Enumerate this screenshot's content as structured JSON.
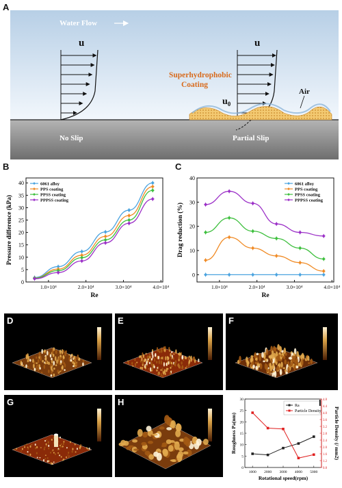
{
  "panels": {
    "A": {
      "letter": "A",
      "water_flow": "Water Flow",
      "u_left": "u",
      "u_right": "u",
      "u0": "u",
      "u0_sub": "0",
      "coating_line1": "Superhydrophobic",
      "coating_line2": "Coating",
      "air": "Air",
      "no_slip": "No Slip",
      "partial_slip": "Partial Slip",
      "colors": {
        "sky_top": "#b7cfe6",
        "sky_bottom": "#f2f7fc",
        "coating_text": "#d86b1d",
        "coating_fill": "#f3c971",
        "ground": "#8f8f8f"
      }
    },
    "D": {
      "letter": "D"
    },
    "E": {
      "letter": "E"
    },
    "F": {
      "letter": "F"
    },
    "G": {
      "letter": "G"
    },
    "H": {
      "letter": "H"
    }
  },
  "chart_data": [
    {
      "id": "B",
      "letter": "B",
      "type": "line",
      "xlabel": "Re",
      "ylabel": "Pressure difference (kPa)",
      "x": [
        6300,
        12600,
        18900,
        25200,
        31500,
        37800
      ],
      "xlim": [
        4000,
        40500
      ],
      "ylim": [
        0,
        42
      ],
      "xticks": [
        10000,
        20000,
        30000,
        40000
      ],
      "xticklabels": [
        "1.0×10⁴",
        "2.0×10⁴",
        "3.0×10⁴",
        "4.0×10⁴"
      ],
      "yticks": [
        0,
        5,
        10,
        15,
        20,
        25,
        30,
        35,
        40
      ],
      "legend_position": "top-left",
      "series": [
        {
          "name": "6061 alloy",
          "color": "#4aa3df",
          "marker": "diamond",
          "values": [
            1.8,
            6.2,
            12.3,
            20.2,
            29.0,
            40.0
          ]
        },
        {
          "name": "PPS coating",
          "color": "#f08a24",
          "marker": "diamond",
          "values": [
            1.6,
            5.2,
            10.8,
            18.4,
            26.8,
            38.5
          ]
        },
        {
          "name": "PPSS coating",
          "color": "#3dbf3d",
          "marker": "diamond",
          "values": [
            1.5,
            4.6,
            9.8,
            17.0,
            25.0,
            37.0
          ]
        },
        {
          "name": "PPPSS coating",
          "color": "#9b2fc7",
          "marker": "diamond",
          "values": [
            1.3,
            3.8,
            8.5,
            15.8,
            23.7,
            33.5
          ]
        }
      ]
    },
    {
      "id": "C",
      "letter": "C",
      "type": "line",
      "xlabel": "Re",
      "ylabel": "Drag reduction (%)",
      "x": [
        6300,
        12600,
        18900,
        25200,
        31500,
        37800
      ],
      "xlim": [
        4000,
        40500
      ],
      "ylim": [
        -3,
        40
      ],
      "xticks": [
        10000,
        20000,
        30000,
        40000
      ],
      "xticklabels": [
        "1.0×10⁴",
        "2.0×10⁴",
        "3.0×10⁴",
        "4.0×10⁴"
      ],
      "yticks": [
        0,
        10,
        20,
        30,
        40
      ],
      "legend_position": "top-right",
      "series": [
        {
          "name": "6061 alloy",
          "color": "#4aa3df",
          "marker": "diamond",
          "values": [
            0,
            0,
            0,
            0,
            0,
            0
          ]
        },
        {
          "name": "PPS coating",
          "color": "#f08a24",
          "marker": "diamond",
          "values": [
            6,
            15.5,
            11,
            7.8,
            5,
            1.5
          ]
        },
        {
          "name": "PPSS coating",
          "color": "#3dbf3d",
          "marker": "diamond",
          "values": [
            17.5,
            23.5,
            18,
            15,
            11,
            6.5
          ]
        },
        {
          "name": "PPPSS coating",
          "color": "#9b2fc7",
          "marker": "diamond",
          "values": [
            29,
            34.5,
            29.5,
            21,
            17.5,
            16
          ]
        }
      ]
    },
    {
      "id": "I",
      "letter": "I",
      "type": "line",
      "xlabel": "Rotational speed(rpm)",
      "ylabel_left": "Roughness Pa(nm)",
      "ylabel_right": "Particle Density (/ mm2)",
      "x": [
        1000,
        2000,
        3000,
        4000,
        5000
      ],
      "xlim": [
        500,
        5500
      ],
      "ylim_left": [
        0,
        30
      ],
      "ylim_right": [
        0.8,
        4.8
      ],
      "yticks_left": [
        0,
        5,
        10,
        15,
        20,
        25,
        30
      ],
      "yticks_right": [
        0.8,
        1.2,
        1.6,
        2.0,
        2.4,
        2.8,
        3.2,
        3.6,
        4.0,
        4.4,
        4.8
      ],
      "legend_position": "top-right",
      "series": [
        {
          "name": "Ra",
          "color": "#222222",
          "marker": "square",
          "axis": "left",
          "values": [
            6,
            5.5,
            8.5,
            10.5,
            13.5
          ]
        },
        {
          "name": "Particle Density",
          "color": "#e02020",
          "marker": "square",
          "axis": "right",
          "values": [
            4.0,
            3.1,
            3.05,
            1.35,
            1.55
          ]
        }
      ]
    }
  ]
}
